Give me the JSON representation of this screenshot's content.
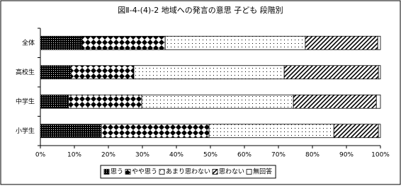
{
  "chart_data": {
    "type": "stacked-bar-horizontal",
    "title": "図Ⅱ-4-(4)-2  地域への発言の意思  子ども   段階別",
    "categories": [
      "全体",
      "高校生",
      "中学生",
      "小学生"
    ],
    "series": [
      {
        "name": "思う",
        "values": [
          12.1,
          9.0,
          8.3,
          17.9
        ]
      },
      {
        "name": "やや思う",
        "values": [
          24.6,
          18.5,
          21.5,
          31.7
        ]
      },
      {
        "name": "あまり思わない",
        "values": [
          41.2,
          44.2,
          44.6,
          36.7
        ]
      },
      {
        "name": "思わない",
        "values": [
          21.3,
          27.7,
          24.4,
          13.1
        ]
      },
      {
        "name": "無回答",
        "values": [
          0.8,
          0.6,
          1.2,
          0.6
        ]
      }
    ],
    "xlim": [
      0,
      100
    ],
    "xticks": [
      {
        "value": 0,
        "label": "0%"
      },
      {
        "value": 10,
        "label": "10%"
      },
      {
        "value": 20,
        "label": "20%"
      },
      {
        "value": 30,
        "label": "30%"
      },
      {
        "value": 40,
        "label": "40%"
      },
      {
        "value": 50,
        "label": "50%"
      },
      {
        "value": 60,
        "label": "60%"
      },
      {
        "value": 70,
        "label": "70%"
      },
      {
        "value": 80,
        "label": "80%"
      },
      {
        "value": 90,
        "label": "90%"
      },
      {
        "value": 100,
        "label": "100%"
      }
    ],
    "grid": false,
    "legend": "bottom"
  }
}
